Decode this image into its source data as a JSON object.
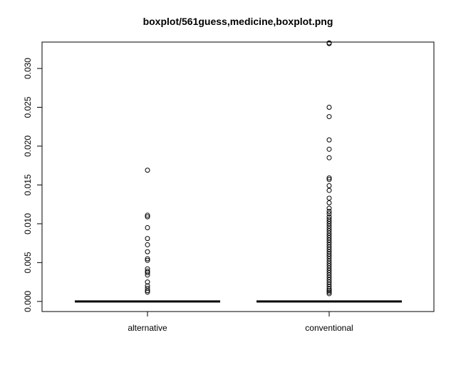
{
  "chart_data": {
    "type": "boxplot",
    "title": "boxplot/561guess,medicine,boxplot.png",
    "xlabel": "",
    "ylabel": "",
    "ylim": [
      -0.0013,
      0.0334
    ],
    "yticks": [
      "0.000",
      "0.005",
      "0.010",
      "0.015",
      "0.020",
      "0.025",
      "0.030"
    ],
    "categories": [
      "alternative",
      "conventional"
    ],
    "series": [
      {
        "category": "alternative",
        "min": 0,
        "q1": 0,
        "median": 0,
        "q3": 0,
        "max": 0,
        "outliers": [
          0.0169,
          0.0111,
          0.0109,
          0.0095,
          0.0081,
          0.0073,
          0.0064,
          0.0055,
          0.0053,
          0.0042,
          0.0039,
          0.0037,
          0.0034,
          0.0025,
          0.002,
          0.0017,
          0.0014,
          0.0012
        ]
      },
      {
        "category": "conventional",
        "min": 0,
        "q1": 0,
        "median": 0,
        "q3": 0,
        "max": 0,
        "outliers": [
          0.0333,
          0.0332,
          0.025,
          0.0238,
          0.0208,
          0.0196,
          0.0185,
          0.0159,
          0.0157,
          0.0149,
          0.0143,
          0.0133,
          0.0127,
          0.012,
          0.0116,
          0.0113,
          0.0109,
          0.0106,
          0.0103,
          0.01,
          0.0097,
          0.0094,
          0.0091,
          0.0088,
          0.0085,
          0.0082,
          0.0079,
          0.0076,
          0.0073,
          0.007,
          0.0067,
          0.0064,
          0.0061,
          0.0058,
          0.0055,
          0.0052,
          0.0049,
          0.0046,
          0.0043,
          0.004,
          0.0037,
          0.0034,
          0.0031,
          0.0028,
          0.0025,
          0.0022,
          0.0019,
          0.0016,
          0.0014,
          0.0012,
          0.001
        ]
      }
    ],
    "colors": {
      "ink": "#000000",
      "background": "#ffffff"
    }
  }
}
